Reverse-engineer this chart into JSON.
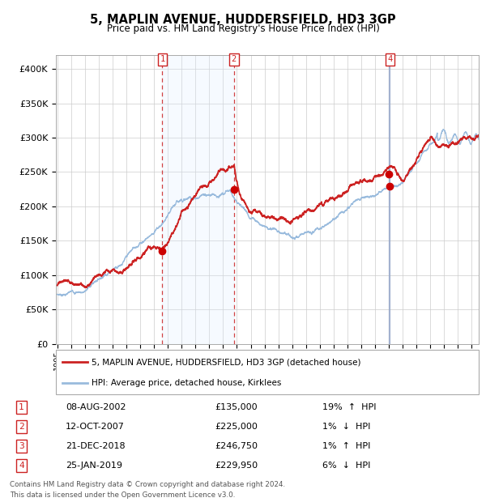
{
  "title": "5, MAPLIN AVENUE, HUDDERSFIELD, HD3 3GP",
  "subtitle": "Price paid vs. HM Land Registry's House Price Index (HPI)",
  "background_color": "#ffffff",
  "plot_bg_color": "#ffffff",
  "grid_color": "#cccccc",
  "hpi_line_color": "#99bbdd",
  "price_line_color": "#cc2222",
  "sale_marker_color": "#cc0000",
  "shaded_region_color": "#ddeeff",
  "sales": [
    {
      "num": 1,
      "date_str": "08-AUG-2002",
      "date_x": 2002.604,
      "price": 135000,
      "pct": "19%",
      "dir": "↑",
      "hpi_label": "HPI",
      "show_top_box": true
    },
    {
      "num": 2,
      "date_str": "12-OCT-2007",
      "date_x": 2007.784,
      "price": 225000,
      "pct": "1%",
      "dir": "↓",
      "hpi_label": "HPI",
      "show_top_box": true
    },
    {
      "num": 3,
      "date_str": "21-DEC-2018",
      "date_x": 2018.969,
      "price": 246750,
      "pct": "1%",
      "dir": "↑",
      "hpi_label": "HPI",
      "show_top_box": false
    },
    {
      "num": 4,
      "date_str": "25-JAN-2019",
      "date_x": 2019.069,
      "price": 229950,
      "pct": "6%",
      "dir": "↓",
      "hpi_label": "HPI",
      "show_top_box": true
    }
  ],
  "legend_entries": [
    {
      "label": "5, MAPLIN AVENUE, HUDDERSFIELD, HD3 3GP (detached house)",
      "color": "#cc2222",
      "lw": 2
    },
    {
      "label": "HPI: Average price, detached house, Kirklees",
      "color": "#99bbdd",
      "lw": 2
    }
  ],
  "footer_lines": [
    "Contains HM Land Registry data © Crown copyright and database right 2024.",
    "This data is licensed under the Open Government Licence v3.0."
  ],
  "ylim": [
    0,
    420000
  ],
  "yticks": [
    0,
    50000,
    100000,
    150000,
    200000,
    250000,
    300000,
    350000,
    400000
  ],
  "ytick_labels": [
    "£0",
    "£50K",
    "£100K",
    "£150K",
    "£200K",
    "£250K",
    "£300K",
    "£350K",
    "£400K"
  ],
  "xlim_start": 1994.9,
  "xlim_end": 2025.5,
  "xtick_years": [
    1995,
    1996,
    1997,
    1998,
    1999,
    2000,
    2001,
    2002,
    2003,
    2004,
    2005,
    2006,
    2007,
    2008,
    2009,
    2010,
    2011,
    2012,
    2013,
    2014,
    2015,
    2016,
    2017,
    2018,
    2019,
    2020,
    2021,
    2022,
    2023,
    2024,
    2025
  ]
}
